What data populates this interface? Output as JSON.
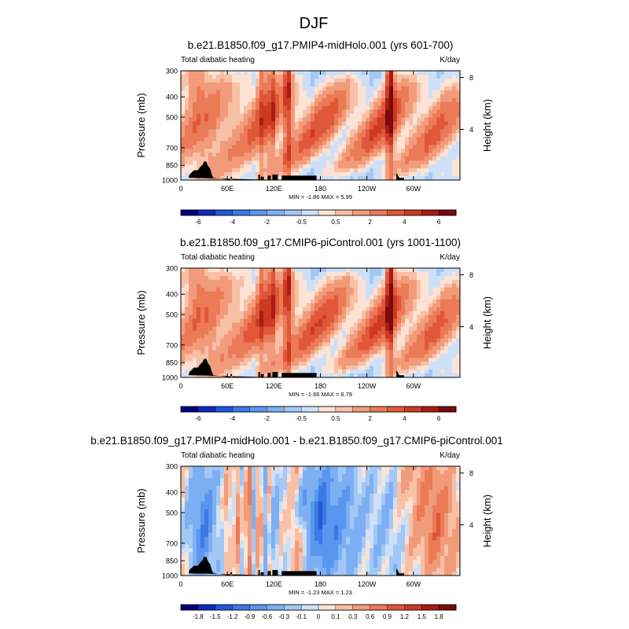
{
  "figure": {
    "title": "DJF"
  },
  "chart_data": [
    {
      "type": "heatmap",
      "title": "b.e21.B1850.f09_g17.PMIP4-midHolo.001 (yrs 601-700)",
      "left_label": "Total diabatic heating",
      "right_label": "K/day",
      "ylabel": "Pressure (mb)",
      "y2label": "Height (km)",
      "x_ticks": [
        "0",
        "60E",
        "120E",
        "180",
        "120W",
        "60W"
      ],
      "y_ticks": [
        "300",
        "400",
        "500",
        "700",
        "850",
        "1000"
      ],
      "y2_ticks": [
        "8",
        "4"
      ],
      "ylim": [
        1000,
        300
      ],
      "stats": "MIN =  -1.86  MAX =   5.99",
      "min": -1.86,
      "max": 5.99,
      "colorbar": {
        "labels": [
          "-6",
          "-4",
          "-2",
          "-0.5",
          "0.5",
          "2",
          "4",
          "6"
        ]
      },
      "features": {
        "warm_x": [
          0.5,
          0.58,
          0.75,
          0.91,
          0.94,
          1.0,
          0.9,
          0.7
        ],
        "cold_x": [
          0.1,
          0.15,
          0.2,
          0.5,
          0.7,
          0.6,
          0.4,
          0.6
        ],
        "towers": [
          [
            0.9,
            0.9
          ],
          [
            0.8,
            1.1
          ],
          [
            0.7,
            1.7
          ],
          [
            0.8,
            2.2
          ]
        ]
      }
    },
    {
      "type": "heatmap",
      "title": "b.e21.B1850.f09_g17.CMIP6-piControl.001 (yrs 1001-1100)",
      "left_label": "Total diabatic heating",
      "right_label": "K/day",
      "ylabel": "Pressure (mb)",
      "y2label": "Height (km)",
      "x_ticks": [
        "0",
        "60E",
        "120E",
        "180",
        "120W",
        "60W"
      ],
      "y_ticks": [
        "300",
        "400",
        "500",
        "700",
        "850",
        "1000"
      ],
      "y2_ticks": [
        "8",
        "4"
      ],
      "ylim": [
        1000,
        300
      ],
      "stats": "MIN =  -1.66  MAX =   6.79",
      "min": -1.66,
      "max": 6.79,
      "colorbar": {
        "labels": [
          "-6",
          "-4",
          "-2",
          "-0.5",
          "0.5",
          "2",
          "4",
          "6"
        ]
      },
      "features": {
        "warm_x": [
          0.5,
          0.6,
          0.8,
          0.93,
          0.96,
          1.0,
          0.9,
          0.7
        ],
        "cold_x": [
          0.1,
          0.12,
          0.18,
          0.45,
          0.65,
          0.6,
          0.4,
          0.6
        ],
        "towers": [
          [
            0.95,
            0.9
          ],
          [
            0.85,
            1.1
          ],
          [
            0.8,
            1.7
          ],
          [
            0.85,
            2.2
          ]
        ]
      }
    },
    {
      "type": "heatmap",
      "title": "b.e21.B1850.f09_g17.PMIP4-midHolo.001 - b.e21.B1850.f09_g17.CMIP6-piControl.001",
      "left_label": "Total diabatic heating",
      "right_label": "K/day",
      "ylabel": "Pressure (mb)",
      "y2label": "Height (km)",
      "x_ticks": [
        "0",
        "60E",
        "120E",
        "180",
        "120W",
        "60W"
      ],
      "y_ticks": [
        "300",
        "400",
        "500",
        "700",
        "850",
        "1000"
      ],
      "y2_ticks": [
        "8",
        "4"
      ],
      "ylim": [
        1000,
        300
      ],
      "stats": "MIN =  -1.23  MAX =   1.23",
      "min": -1.23,
      "max": 1.23,
      "colorbar": {
        "labels": [
          "-1.8",
          "-1.5",
          "-1.2",
          "-0.9",
          "-0.6",
          "-0.3",
          "-0.1",
          "0",
          "0.1",
          "0.3",
          "0.6",
          "0.9",
          "1.2",
          "1.5",
          "1.8"
        ]
      },
      "features": {
        "diff_x": [
          0.05,
          -0.9,
          0.2,
          0.3,
          -0.3,
          0.4,
          -1.1,
          -0.6,
          -0.2,
          -0.3,
          0.1,
          0.8,
          0.2
        ]
      }
    }
  ]
}
